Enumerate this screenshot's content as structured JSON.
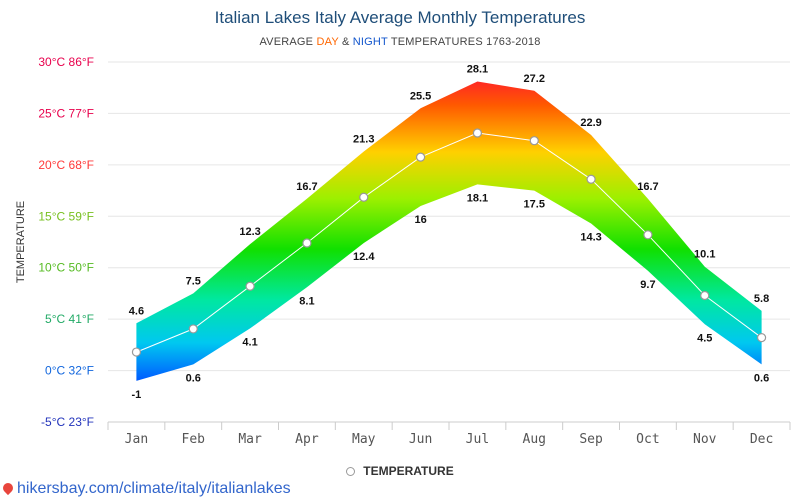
{
  "title": "Italian Lakes Italy Average Monthly Temperatures",
  "subtitle": {
    "prefix": "AVERAGE ",
    "day": "DAY",
    "amp": " & ",
    "night": "NIGHT",
    "suffix": " TEMPERATURES 1763-2018"
  },
  "legend_label": "TEMPERATURE",
  "source_link": "hikersbay.com/climate/italy/italianlakes",
  "icons": {
    "source": "map-pin-icon",
    "legend": "circle-marker-icon"
  },
  "chart_data": {
    "type": "area",
    "ylabel": "TEMPERATURE",
    "categories": [
      "Jan",
      "Feb",
      "Mar",
      "Apr",
      "May",
      "Jun",
      "Jul",
      "Aug",
      "Sep",
      "Oct",
      "Nov",
      "Dec"
    ],
    "ylim": [
      -5,
      30
    ],
    "yticks": [
      {
        "value": 30,
        "label": "30°C 86°F"
      },
      {
        "value": 25,
        "label": "25°C 77°F"
      },
      {
        "value": 20,
        "label": "20°C 68°F"
      },
      {
        "value": 15,
        "label": "15°C 59°F"
      },
      {
        "value": 10,
        "label": "10°C 50°F"
      },
      {
        "value": 5,
        "label": "5°C 41°F"
      },
      {
        "value": 0,
        "label": "0°C 32°F"
      },
      {
        "value": -5,
        "label": "-5°C 23°F"
      }
    ],
    "series": [
      {
        "name": "DAY",
        "values": [
          4.6,
          7.5,
          12.3,
          16.7,
          21.3,
          25.5,
          28.1,
          27.2,
          22.9,
          16.7,
          10.1,
          5.8
        ]
      },
      {
        "name": "NIGHT",
        "values": [
          -1,
          0.6,
          4.1,
          8.1,
          12.4,
          16,
          18.1,
          17.5,
          14.3,
          9.7,
          4.5,
          0.6
        ]
      },
      {
        "name": "TEMPERATURE",
        "values": [
          1.8,
          4.05,
          8.2,
          12.4,
          16.85,
          20.75,
          23.1,
          22.35,
          18.6,
          13.2,
          7.3,
          3.2
        ]
      }
    ],
    "grid": true,
    "legend_position": "bottom"
  }
}
